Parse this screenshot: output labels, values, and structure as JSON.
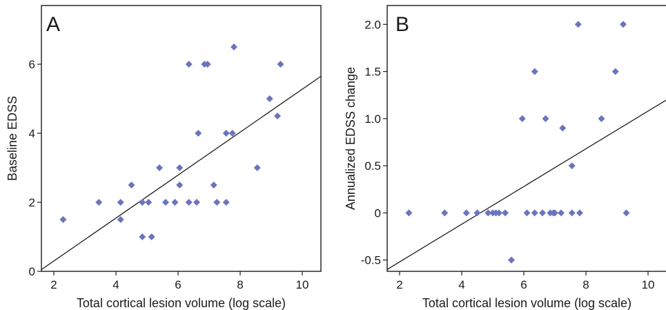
{
  "colors": {
    "marker": "#6b74bd",
    "line": "#1a1a1a",
    "frame": "#1a1a1a",
    "background": "#ffffff"
  },
  "chart_data": [
    {
      "type": "scatter",
      "panel_label": "A",
      "xlabel": "Total cortical lesion volume (log scale)",
      "ylabel": "Baseline EDSS",
      "xlim": [
        1.6,
        10.6
      ],
      "ylim": [
        0,
        7.7
      ],
      "xticks": [
        2,
        4,
        6,
        8,
        10
      ],
      "yticks": [
        0,
        2,
        4,
        6
      ],
      "xtick_labels": [
        "2",
        "4",
        "6",
        "8",
        "10"
      ],
      "ytick_labels": [
        "0",
        "2",
        "4",
        "6"
      ],
      "grid": false,
      "legend": "none",
      "points": [
        [
          2.3,
          1.5
        ],
        [
          3.45,
          2.0
        ],
        [
          4.15,
          2.0
        ],
        [
          4.15,
          1.5
        ],
        [
          4.5,
          2.5
        ],
        [
          4.85,
          2.0
        ],
        [
          5.05,
          2.0
        ],
        [
          4.85,
          1.0
        ],
        [
          5.15,
          1.0
        ],
        [
          5.4,
          3.0
        ],
        [
          5.6,
          2.0
        ],
        [
          5.9,
          2.0
        ],
        [
          6.05,
          3.0
        ],
        [
          6.05,
          2.5
        ],
        [
          6.35,
          6.0
        ],
        [
          6.35,
          2.0
        ],
        [
          6.6,
          2.0
        ],
        [
          6.65,
          4.0
        ],
        [
          6.85,
          6.0
        ],
        [
          6.95,
          6.0
        ],
        [
          7.15,
          2.5
        ],
        [
          7.25,
          2.0
        ],
        [
          7.55,
          2.0
        ],
        [
          7.55,
          4.0
        ],
        [
          7.75,
          4.0
        ],
        [
          7.8,
          6.5
        ],
        [
          8.55,
          3.0
        ],
        [
          8.95,
          5.0
        ],
        [
          9.2,
          4.5
        ],
        [
          9.3,
          6.0
        ]
      ],
      "fit_line": {
        "x": [
          1.6,
          10.6
        ],
        "y": [
          0.05,
          5.65
        ]
      }
    },
    {
      "type": "scatter",
      "panel_label": "B",
      "xlabel": "Total cortical lesion volume (log scale)",
      "ylabel": "Annualized EDSS change",
      "xlim": [
        1.6,
        10.6
      ],
      "ylim": [
        -0.62,
        2.2
      ],
      "xticks": [
        2,
        4,
        6,
        8,
        10
      ],
      "yticks": [
        -0.5,
        0.0,
        0.5,
        1.0,
        1.5,
        2.0
      ],
      "xtick_labels": [
        "2",
        "4",
        "6",
        "8",
        "10"
      ],
      "ytick_labels": [
        "-0.5",
        "0",
        "0.5",
        "1.0",
        "1.5",
        "2.0"
      ],
      "grid": false,
      "legend": "none",
      "points": [
        [
          2.3,
          0.0
        ],
        [
          3.45,
          0.0
        ],
        [
          4.15,
          0.0
        ],
        [
          4.5,
          0.0
        ],
        [
          4.85,
          0.0
        ],
        [
          5.0,
          0.0
        ],
        [
          5.1,
          0.0
        ],
        [
          5.2,
          0.0
        ],
        [
          5.4,
          0.0
        ],
        [
          5.6,
          -0.5
        ],
        [
          5.95,
          1.0
        ],
        [
          6.1,
          0.0
        ],
        [
          6.35,
          1.5
        ],
        [
          6.35,
          0.0
        ],
        [
          6.6,
          0.0
        ],
        [
          6.7,
          1.0
        ],
        [
          6.85,
          0.0
        ],
        [
          6.95,
          0.0
        ],
        [
          7.0,
          0.0
        ],
        [
          7.2,
          0.0
        ],
        [
          7.25,
          0.9
        ],
        [
          7.55,
          0.5
        ],
        [
          7.55,
          0.0
        ],
        [
          7.75,
          2.0
        ],
        [
          7.8,
          0.0
        ],
        [
          8.5,
          1.0
        ],
        [
          8.95,
          1.5
        ],
        [
          9.2,
          2.0
        ],
        [
          9.3,
          0.0
        ]
      ],
      "fit_line": {
        "x": [
          1.6,
          10.6
        ],
        "y": [
          -0.6,
          1.2
        ]
      }
    }
  ]
}
